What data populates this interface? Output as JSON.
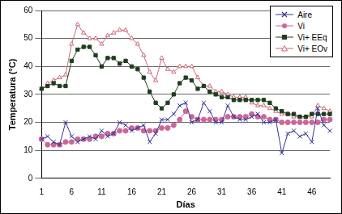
{
  "chart_data": {
    "type": "line",
    "x_label": "Días",
    "y_label": "Temperatura (°C)",
    "categories": [
      1,
      null,
      null,
      null,
      null,
      6,
      null,
      null,
      null,
      null,
      11,
      null,
      null,
      null,
      null,
      16,
      null,
      null,
      null,
      null,
      21,
      null,
      null,
      null,
      null,
      26,
      null,
      null,
      null,
      null,
      31,
      null,
      null,
      null,
      null,
      36,
      null,
      null,
      null,
      null,
      41,
      null,
      null,
      null,
      null,
      46,
      null,
      null,
      null
    ],
    "series": [
      {
        "name": "Aire",
        "color": "#333399",
        "marker": "x",
        "values": [
          14,
          15,
          13,
          12,
          20,
          15,
          13,
          14,
          15,
          14,
          17,
          15,
          16,
          20,
          19,
          17,
          18,
          19,
          13,
          16,
          21,
          21,
          23,
          26,
          27,
          20,
          21,
          27,
          24,
          20,
          20,
          26,
          22,
          21,
          21,
          22,
          23,
          20,
          20,
          21,
          9,
          16,
          17,
          15,
          16,
          13,
          25,
          19,
          17
        ]
      },
      {
        "name": "Vi",
        "color": "#cc6699",
        "marker": "circle",
        "values": [
          14,
          12,
          12,
          12,
          13,
          13,
          14,
          14,
          14,
          15,
          15,
          16,
          16,
          17,
          17,
          18,
          18,
          17,
          17,
          17,
          18,
          18,
          19,
          21,
          24,
          22,
          21,
          21,
          21,
          21,
          21,
          22,
          22,
          22,
          22,
          23,
          22,
          22,
          21,
          21,
          20,
          20,
          20,
          20,
          20,
          20,
          20,
          21,
          21
        ]
      },
      {
        "name": "Vi+ EEq",
        "color": "#1e3d1e",
        "marker": "square",
        "values": [
          32,
          33,
          34,
          33,
          33,
          42,
          46,
          47,
          47,
          44,
          40,
          43,
          43,
          41,
          42,
          40,
          39,
          36,
          31,
          27,
          25,
          27,
          30,
          34,
          36,
          35,
          32,
          33,
          31,
          30,
          29,
          29,
          28,
          28,
          28,
          28,
          28,
          28,
          27,
          25,
          24,
          23,
          23,
          22,
          22,
          23,
          23,
          23,
          23
        ]
      },
      {
        "name": "Vi+ EOv",
        "color": "#cc6677",
        "marker": "triangle",
        "values": [
          32,
          34,
          35,
          36,
          37,
          48,
          55,
          52,
          50,
          50,
          48,
          51,
          52,
          53,
          53,
          50,
          48,
          44,
          38,
          35,
          43,
          39,
          38,
          40,
          40,
          40,
          36,
          33,
          33,
          31,
          31,
          30,
          29,
          29,
          29,
          27,
          26,
          26,
          25,
          24,
          23,
          23,
          22,
          22,
          22,
          22,
          26,
          25,
          24
        ]
      }
    ],
    "ylim": [
      0,
      60
    ],
    "yticks": [
      0,
      10,
      20,
      30,
      40,
      50,
      60
    ],
    "grid": true,
    "legend": "upper right"
  }
}
